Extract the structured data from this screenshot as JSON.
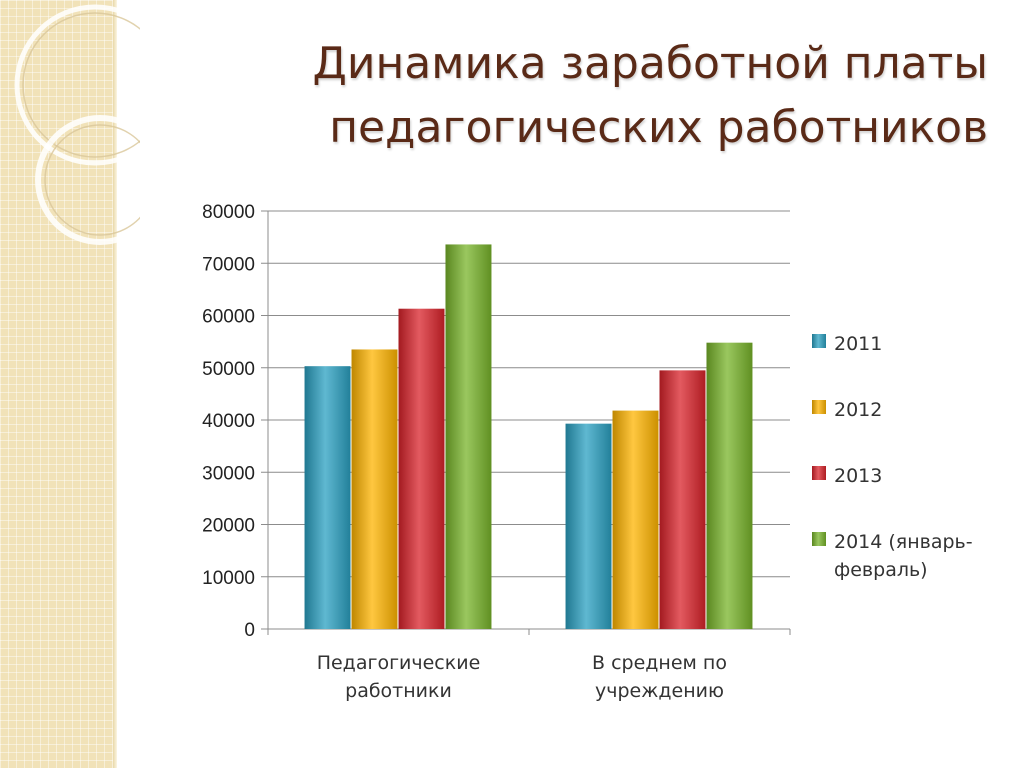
{
  "slide": {
    "title_line1": "Динамика заработной платы",
    "title_line2": "педагогических работников"
  },
  "chart_data": {
    "type": "bar",
    "title": "",
    "xlabel": "",
    "ylabel": "",
    "ylim": [
      0,
      80000
    ],
    "yticks": [
      0,
      10000,
      20000,
      30000,
      40000,
      50000,
      60000,
      70000,
      80000
    ],
    "grid": true,
    "legend_position": "right",
    "categories": [
      [
        "Педагогические",
        "работники"
      ],
      [
        "В среднем по",
        "учреждению"
      ]
    ],
    "series": [
      {
        "name": "2011",
        "color": "#2aa0c1",
        "values": [
          50300,
          39300
        ]
      },
      {
        "name": "2012",
        "color": "#ffb400",
        "values": [
          53500,
          41800
        ]
      },
      {
        "name": "2013",
        "color": "#d9232b",
        "values": [
          61300,
          49500
        ]
      },
      {
        "name": "2014 (январь-февраль)",
        "name_lines": [
          "2014 (январь-",
          "февраль)"
        ],
        "color": "#78b42a",
        "values": [
          73600,
          54800
        ]
      }
    ]
  }
}
